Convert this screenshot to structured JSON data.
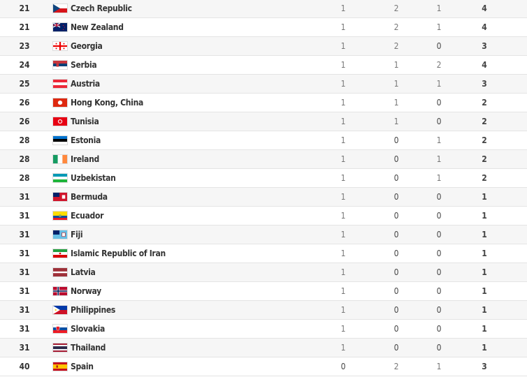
{
  "medal_table": {
    "rows": [
      {
        "rank": "21",
        "country": "Czech Republic",
        "flag": "cze",
        "gold": "1",
        "silver": "2",
        "bronze": "1",
        "total": "4"
      },
      {
        "rank": "21",
        "country": "New Zealand",
        "flag": "nzl",
        "gold": "1",
        "silver": "2",
        "bronze": "1",
        "total": "4"
      },
      {
        "rank": "23",
        "country": "Georgia",
        "flag": "geo",
        "gold": "1",
        "silver": "2",
        "bronze": "0",
        "total": "3"
      },
      {
        "rank": "24",
        "country": "Serbia",
        "flag": "srb",
        "gold": "1",
        "silver": "1",
        "bronze": "2",
        "total": "4"
      },
      {
        "rank": "25",
        "country": "Austria",
        "flag": "aut",
        "gold": "1",
        "silver": "1",
        "bronze": "1",
        "total": "3"
      },
      {
        "rank": "26",
        "country": "Hong Kong, China",
        "flag": "hkg",
        "gold": "1",
        "silver": "1",
        "bronze": "0",
        "total": "2"
      },
      {
        "rank": "26",
        "country": "Tunisia",
        "flag": "tun",
        "gold": "1",
        "silver": "1",
        "bronze": "0",
        "total": "2"
      },
      {
        "rank": "28",
        "country": "Estonia",
        "flag": "est",
        "gold": "1",
        "silver": "0",
        "bronze": "1",
        "total": "2"
      },
      {
        "rank": "28",
        "country": "Ireland",
        "flag": "irl",
        "gold": "1",
        "silver": "0",
        "bronze": "1",
        "total": "2"
      },
      {
        "rank": "28",
        "country": "Uzbekistan",
        "flag": "uzb",
        "gold": "1",
        "silver": "0",
        "bronze": "1",
        "total": "2"
      },
      {
        "rank": "31",
        "country": "Bermuda",
        "flag": "ber",
        "gold": "1",
        "silver": "0",
        "bronze": "0",
        "total": "1"
      },
      {
        "rank": "31",
        "country": "Ecuador",
        "flag": "ecu",
        "gold": "1",
        "silver": "0",
        "bronze": "0",
        "total": "1"
      },
      {
        "rank": "31",
        "country": "Fiji",
        "flag": "fij",
        "gold": "1",
        "silver": "0",
        "bronze": "0",
        "total": "1"
      },
      {
        "rank": "31",
        "country": "Islamic Republic of Iran",
        "flag": "iri",
        "gold": "1",
        "silver": "0",
        "bronze": "0",
        "total": "1"
      },
      {
        "rank": "31",
        "country": "Latvia",
        "flag": "lat",
        "gold": "1",
        "silver": "0",
        "bronze": "0",
        "total": "1"
      },
      {
        "rank": "31",
        "country": "Norway",
        "flag": "nor",
        "gold": "1",
        "silver": "0",
        "bronze": "0",
        "total": "1"
      },
      {
        "rank": "31",
        "country": "Philippines",
        "flag": "phi",
        "gold": "1",
        "silver": "0",
        "bronze": "0",
        "total": "1"
      },
      {
        "rank": "31",
        "country": "Slovakia",
        "flag": "svk",
        "gold": "1",
        "silver": "0",
        "bronze": "0",
        "total": "1"
      },
      {
        "rank": "31",
        "country": "Thailand",
        "flag": "tha",
        "gold": "1",
        "silver": "0",
        "bronze": "0",
        "total": "1"
      },
      {
        "rank": "40",
        "country": "Spain",
        "flag": "esp",
        "gold": "0",
        "silver": "2",
        "bronze": "1",
        "total": "3"
      }
    ]
  }
}
